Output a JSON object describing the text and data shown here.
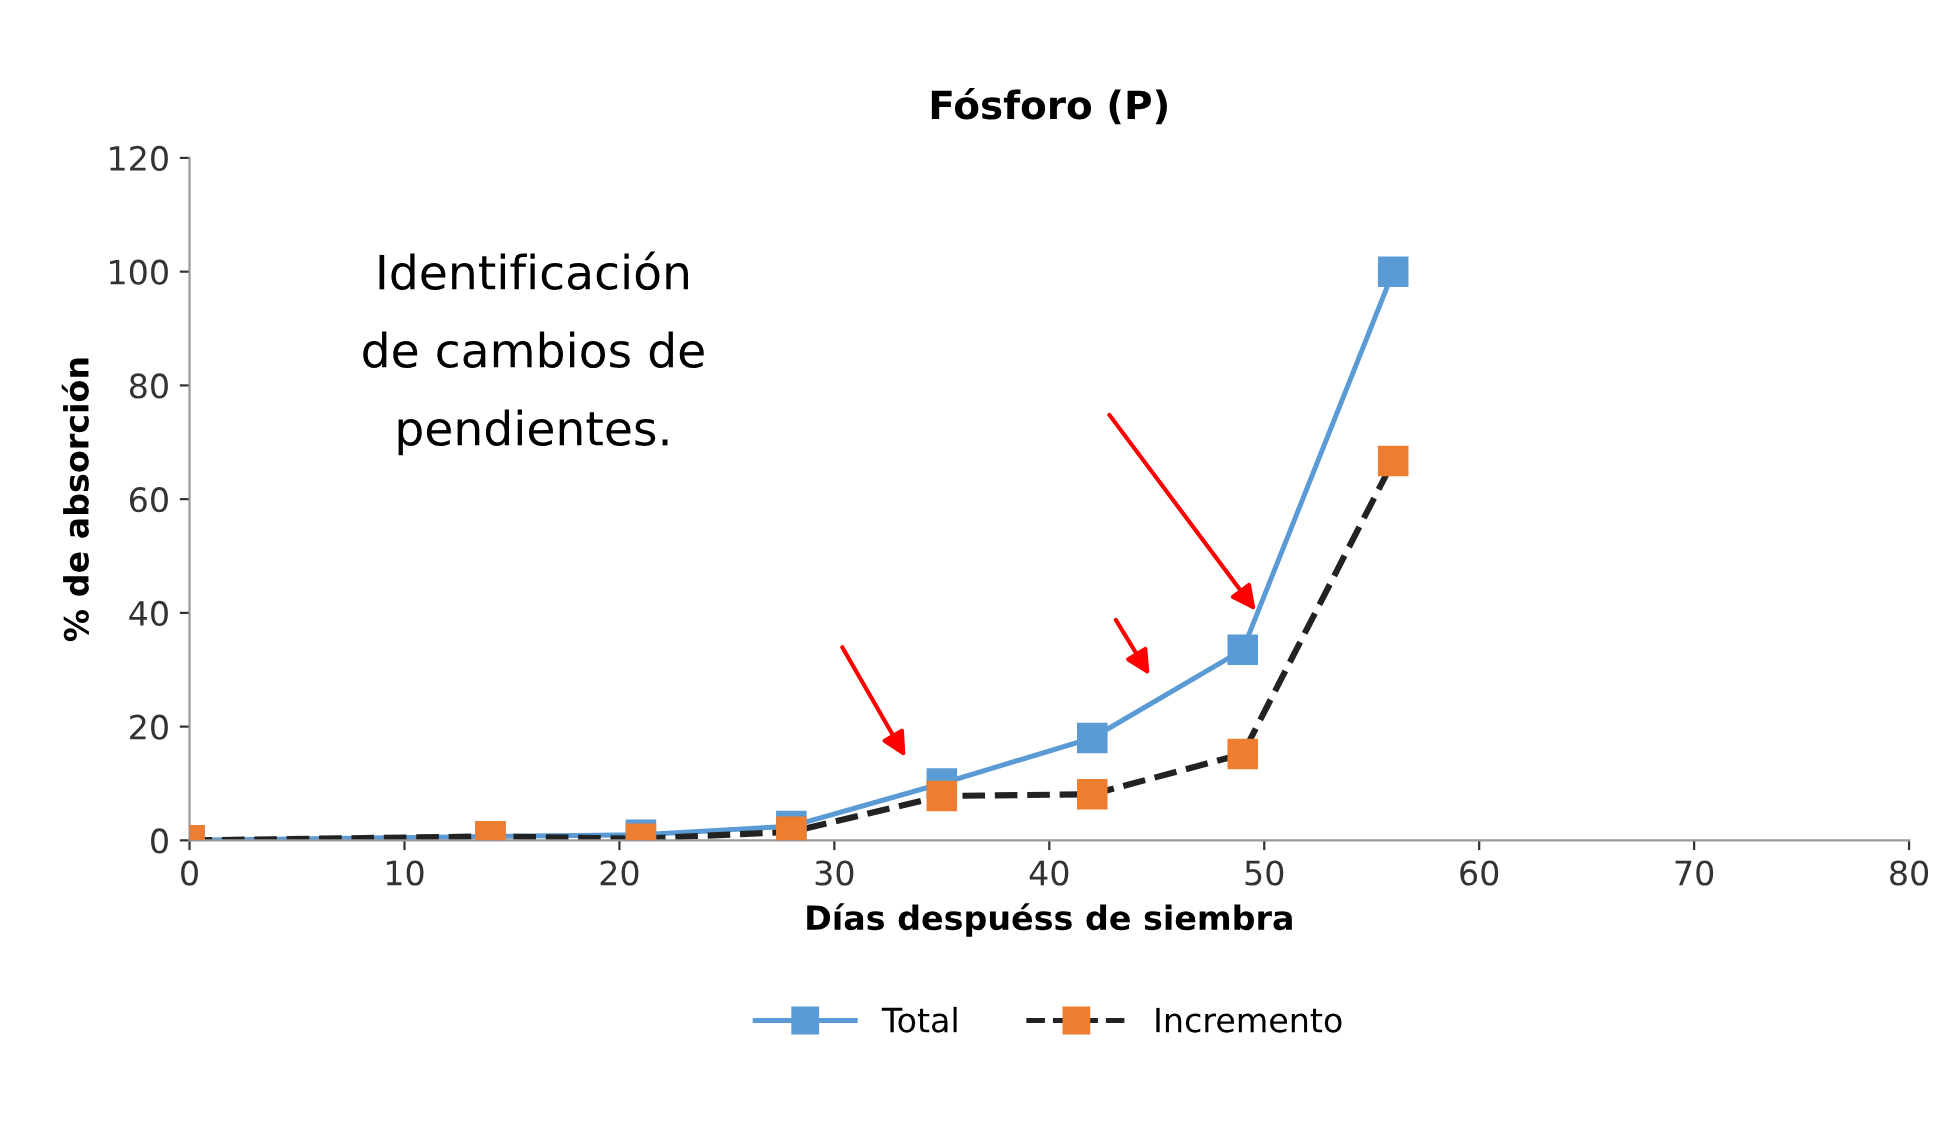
{
  "chart_data": {
    "type": "line",
    "title": "Fósforo (P)",
    "xlabel": "Días despuéss de siembra",
    "ylabel": "% de absorción",
    "annotations": [
      "Identificación\nde cambios de\npendientes."
    ],
    "x": [
      0,
      14,
      21,
      28,
      35,
      42,
      49,
      56
    ],
    "series": [
      {
        "name": "Total",
        "color": "#5b9bd5",
        "line_style": "solid",
        "values": [
          0,
          0.7,
          1,
          2.5,
          10,
          18,
          33.5,
          100
        ]
      },
      {
        "name": "Incremento",
        "color": "#ed7d31",
        "line_style": "dashed",
        "values": [
          0,
          0.7,
          0.3,
          1.5,
          7.8,
          8.1,
          15.2,
          66.7
        ]
      }
    ],
    "xlim": [
      0,
      80
    ],
    "xticks": [
      0,
      10,
      20,
      30,
      40,
      50,
      60,
      70,
      80
    ],
    "ylim": [
      0,
      120
    ],
    "yticks": [
      0,
      20,
      40,
      60,
      80,
      100,
      120
    ],
    "marker": "square",
    "legend": "bottom",
    "grid": false
  }
}
